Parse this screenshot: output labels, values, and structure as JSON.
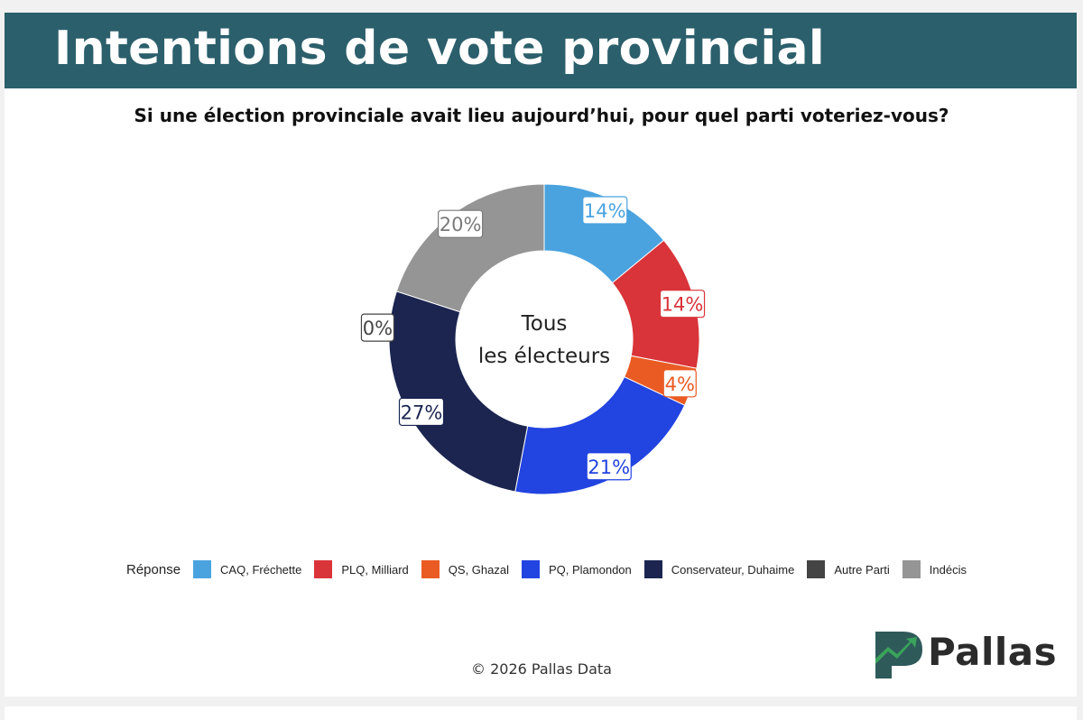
{
  "banner": {
    "title": "Intentions de vote provincial"
  },
  "question": "Si une élection provinciale avait lieu aujourd’hui, pour quel parti voteriez-vous?",
  "chart_data": {
    "type": "pie",
    "variant": "donut",
    "center_label": [
      "Tous",
      "les électeurs"
    ],
    "legend_title": "Réponse",
    "legend_position": "bottom",
    "slices": [
      {
        "name": "CAQ, Fréchette",
        "value": 14,
        "label": "14%",
        "color": "#4aa3df"
      },
      {
        "name": "PLQ, Milliard",
        "value": 14,
        "label": "14%",
        "color": "#d9343a"
      },
      {
        "name": "QS, Ghazal",
        "value": 4,
        "label": "4%",
        "color": "#ea5b24"
      },
      {
        "name": "PQ, Plamondon",
        "value": 21,
        "label": "21%",
        "color": "#2244e0"
      },
      {
        "name": "Conservateur, Duhaime",
        "value": 27,
        "label": "27%",
        "color": "#1b2550"
      },
      {
        "name": "Autre Parti",
        "value": 0,
        "label": "0%",
        "color": "#444444"
      },
      {
        "name": "Indécis",
        "value": 20,
        "label": "20%",
        "color": "#959595"
      }
    ]
  },
  "footer": {
    "copyright": "© 2026 Pallas Data"
  },
  "logo": {
    "text": "Pallas",
    "colors": {
      "green": "#2e8b57",
      "dark": "#2f4f4f"
    }
  }
}
